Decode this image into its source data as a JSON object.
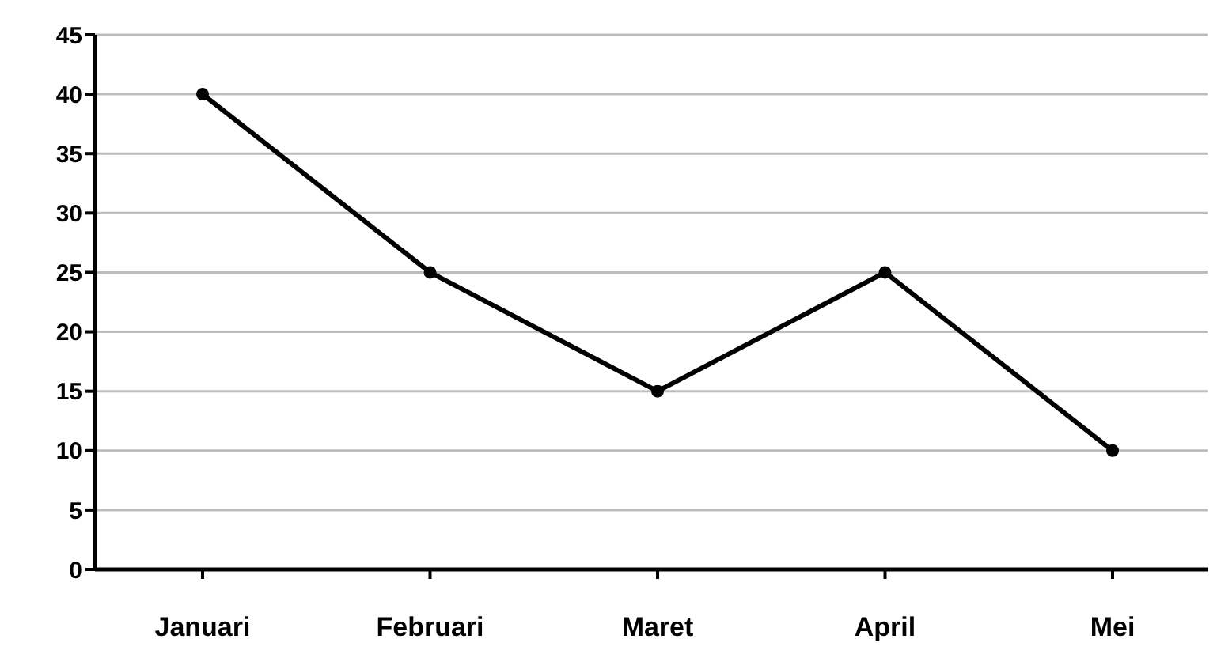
{
  "chart_data": {
    "type": "line",
    "categories": [
      "Januari",
      "Februari",
      "Maret",
      "April",
      "Mei"
    ],
    "series": [
      {
        "color": "#000000",
        "values": [
          40,
          25,
          15,
          25,
          10
        ]
      }
    ],
    "ylim": [
      0,
      45
    ],
    "yticks": [
      0,
      5,
      10,
      15,
      20,
      25,
      30,
      35,
      40,
      45
    ],
    "grid": "y",
    "marker": "circle",
    "line_style": "solid",
    "legend": false
  }
}
